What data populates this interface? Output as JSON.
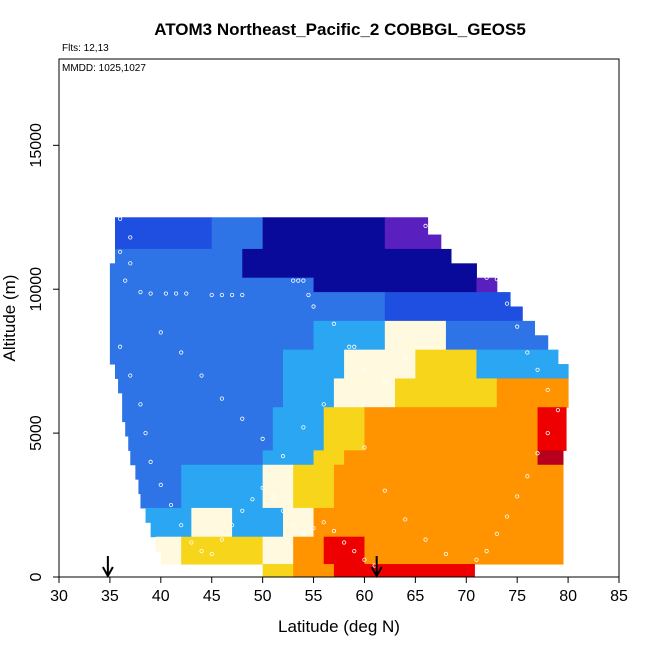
{
  "chart_data": {
    "type": "heatmap",
    "title": "ATOM3 Northeast_Pacific_2 COBBGL_GEOS5",
    "annotations": {
      "flights": "Flts: 12,13",
      "dates": "MMDD: 1025,1027"
    },
    "xlabel": "Latitude (deg N)",
    "ylabel": "Altitude (m)",
    "xlim": [
      30,
      85
    ],
    "ylim": [
      0,
      18000
    ],
    "x_ticks": [
      30,
      35,
      40,
      45,
      50,
      55,
      60,
      65,
      70,
      75,
      80,
      85
    ],
    "x_tick_labels": [
      "30",
      "35",
      "40",
      "45",
      "50",
      "55",
      "60",
      "65",
      "70",
      "75",
      "80",
      "85"
    ],
    "y_ticks": [
      0,
      5000,
      10000,
      15000
    ],
    "y_tick_labels": [
      "0",
      "5000",
      "10000",
      "15000"
    ],
    "grid": false,
    "arrows_latitude": [
      34.8,
      61.2
    ],
    "colors": {
      "dark_purple": "#5a1fbf",
      "dark_blue": "#0a0a9a",
      "blue": "#1f4fe0",
      "mid_blue": "#2e74e6",
      "light_blue": "#2aa6f2",
      "pale": "#fffadf",
      "yellow": "#f7d51a",
      "orange": "#ff9300",
      "red": "#ef0000",
      "dark_red": "#b8001c",
      "track_marker": "#ffffff"
    },
    "bands": [
      {
        "alt_lo": 11900,
        "alt_hi": 12500,
        "lat_lo": 35.5,
        "lat_hi": 66.2
      },
      {
        "alt_lo": 11400,
        "alt_hi": 11900,
        "lat_lo": 35.5,
        "lat_hi": 67.5
      },
      {
        "alt_lo": 10900,
        "alt_hi": 11400,
        "lat_lo": 35.5,
        "lat_hi": 68.5
      },
      {
        "alt_lo": 10400,
        "alt_hi": 10900,
        "lat_lo": 35.0,
        "lat_hi": 71.0
      },
      {
        "alt_lo": 9900,
        "alt_hi": 10400,
        "lat_lo": 35.0,
        "lat_hi": 73.0
      },
      {
        "alt_lo": 9400,
        "alt_hi": 9900,
        "lat_lo": 35.0,
        "lat_hi": 74.3
      },
      {
        "alt_lo": 8900,
        "alt_hi": 9400,
        "lat_lo": 35.0,
        "lat_hi": 75.5
      },
      {
        "alt_lo": 8400,
        "alt_hi": 8900,
        "lat_lo": 35.0,
        "lat_hi": 76.7
      },
      {
        "alt_lo": 7900,
        "alt_hi": 8400,
        "lat_lo": 35.0,
        "lat_hi": 78.0
      },
      {
        "alt_lo": 7400,
        "alt_hi": 7900,
        "lat_lo": 35.0,
        "lat_hi": 79.0
      },
      {
        "alt_lo": 6900,
        "alt_hi": 7400,
        "lat_lo": 35.5,
        "lat_hi": 80.0
      },
      {
        "alt_lo": 6400,
        "alt_hi": 6900,
        "lat_lo": 35.8,
        "lat_hi": 80.0
      },
      {
        "alt_lo": 5900,
        "alt_hi": 6400,
        "lat_lo": 36.2,
        "lat_hi": 80.0
      },
      {
        "alt_lo": 5400,
        "alt_hi": 5900,
        "lat_lo": 36.2,
        "lat_hi": 80.0
      },
      {
        "alt_lo": 4900,
        "alt_hi": 5400,
        "lat_lo": 36.5,
        "lat_hi": 79.8
      },
      {
        "alt_lo": 4400,
        "alt_hi": 4900,
        "lat_lo": 36.8,
        "lat_hi": 79.8
      },
      {
        "alt_lo": 3900,
        "alt_hi": 4400,
        "lat_lo": 37.0,
        "lat_hi": 79.5
      },
      {
        "alt_lo": 3400,
        "alt_hi": 3900,
        "lat_lo": 37.5,
        "lat_hi": 79.5
      },
      {
        "alt_lo": 2900,
        "alt_hi": 3400,
        "lat_lo": 37.8,
        "lat_hi": 79.5
      },
      {
        "alt_lo": 2400,
        "alt_hi": 2900,
        "lat_lo": 38.0,
        "lat_hi": 79.5
      },
      {
        "alt_lo": 1900,
        "alt_hi": 2400,
        "lat_lo": 38.5,
        "lat_hi": 79.5
      },
      {
        "alt_lo": 1400,
        "alt_hi": 1900,
        "lat_lo": 39.0,
        "lat_hi": 79.5
      },
      {
        "alt_lo": 900,
        "alt_hi": 1400,
        "lat_lo": 39.5,
        "lat_hi": 79.5
      },
      {
        "alt_lo": 450,
        "alt_hi": 900,
        "lat_lo": 40.0,
        "lat_hi": 79.5
      },
      {
        "alt_lo": 0,
        "alt_hi": 450,
        "lat_lo": 50.0,
        "lat_hi": 70.8
      }
    ],
    "color_regions": [
      {
        "alt_lo": 11400,
        "alt_hi": 12500,
        "lat_lo": 35.5,
        "lat_hi": 45.0,
        "color": "blue"
      },
      {
        "alt_lo": 11400,
        "alt_hi": 12500,
        "lat_lo": 45.0,
        "lat_hi": 50.0,
        "color": "mid_blue"
      },
      {
        "alt_lo": 11400,
        "alt_hi": 12500,
        "lat_lo": 50.0,
        "lat_hi": 62.0,
        "color": "dark_blue"
      },
      {
        "alt_lo": 11400,
        "alt_hi": 12500,
        "lat_lo": 62.0,
        "lat_hi": 68.0,
        "color": "dark_purple"
      },
      {
        "alt_lo": 10400,
        "alt_hi": 11400,
        "lat_lo": 35.0,
        "lat_hi": 48.0,
        "color": "mid_blue"
      },
      {
        "alt_lo": 10400,
        "alt_hi": 11400,
        "lat_lo": 48.0,
        "lat_hi": 71.0,
        "color": "dark_blue"
      },
      {
        "alt_lo": 9900,
        "alt_hi": 10400,
        "lat_lo": 35.0,
        "lat_hi": 55.0,
        "color": "mid_blue"
      },
      {
        "alt_lo": 9900,
        "alt_hi": 10400,
        "lat_lo": 55.0,
        "lat_hi": 71.0,
        "color": "dark_blue"
      },
      {
        "alt_lo": 9900,
        "alt_hi": 10400,
        "lat_lo": 71.0,
        "lat_hi": 73.0,
        "color": "dark_purple"
      },
      {
        "alt_lo": 8900,
        "alt_hi": 9900,
        "lat_lo": 35.0,
        "lat_hi": 62.0,
        "color": "mid_blue"
      },
      {
        "alt_lo": 8900,
        "alt_hi": 9900,
        "lat_lo": 62.0,
        "lat_hi": 75.5,
        "color": "blue"
      },
      {
        "alt_lo": 7900,
        "alt_hi": 8900,
        "lat_lo": 35.0,
        "lat_hi": 55.0,
        "color": "mid_blue"
      },
      {
        "alt_lo": 7900,
        "alt_hi": 8900,
        "lat_lo": 55.0,
        "lat_hi": 62.0,
        "color": "light_blue"
      },
      {
        "alt_lo": 7900,
        "alt_hi": 8900,
        "lat_lo": 62.0,
        "lat_hi": 68.0,
        "color": "pale"
      },
      {
        "alt_lo": 7900,
        "alt_hi": 8900,
        "lat_lo": 68.0,
        "lat_hi": 78.0,
        "color": "mid_blue"
      },
      {
        "alt_lo": 6900,
        "alt_hi": 7900,
        "lat_lo": 35.0,
        "lat_hi": 52.0,
        "color": "mid_blue"
      },
      {
        "alt_lo": 6900,
        "alt_hi": 7900,
        "lat_lo": 52.0,
        "lat_hi": 58.0,
        "color": "light_blue"
      },
      {
        "alt_lo": 6900,
        "alt_hi": 7900,
        "lat_lo": 58.0,
        "lat_hi": 65.0,
        "color": "pale"
      },
      {
        "alt_lo": 6900,
        "alt_hi": 7900,
        "lat_lo": 65.0,
        "lat_hi": 71.0,
        "color": "yellow"
      },
      {
        "alt_lo": 6900,
        "alt_hi": 7900,
        "lat_lo": 71.0,
        "lat_hi": 80.0,
        "color": "light_blue"
      },
      {
        "alt_lo": 5900,
        "alt_hi": 6900,
        "lat_lo": 35.5,
        "lat_hi": 52.0,
        "color": "mid_blue"
      },
      {
        "alt_lo": 5900,
        "alt_hi": 6900,
        "lat_lo": 52.0,
        "lat_hi": 57.0,
        "color": "light_blue"
      },
      {
        "alt_lo": 5900,
        "alt_hi": 6900,
        "lat_lo": 57.0,
        "lat_hi": 63.0,
        "color": "pale"
      },
      {
        "alt_lo": 5900,
        "alt_hi": 6900,
        "lat_lo": 63.0,
        "lat_hi": 73.0,
        "color": "yellow"
      },
      {
        "alt_lo": 5900,
        "alt_hi": 6900,
        "lat_lo": 73.0,
        "lat_hi": 80.0,
        "color": "orange"
      },
      {
        "alt_lo": 4400,
        "alt_hi": 5900,
        "lat_lo": 36.2,
        "lat_hi": 51.0,
        "color": "mid_blue"
      },
      {
        "alt_lo": 4400,
        "alt_hi": 5900,
        "lat_lo": 51.0,
        "lat_hi": 56.0,
        "color": "light_blue"
      },
      {
        "alt_lo": 4400,
        "alt_hi": 5900,
        "lat_lo": 56.0,
        "lat_hi": 60.0,
        "color": "yellow"
      },
      {
        "alt_lo": 4400,
        "alt_hi": 5900,
        "lat_lo": 60.0,
        "lat_hi": 77.0,
        "color": "orange"
      },
      {
        "alt_lo": 4400,
        "alt_hi": 5900,
        "lat_lo": 77.0,
        "lat_hi": 79.8,
        "color": "red"
      },
      {
        "alt_lo": 3900,
        "alt_hi": 4400,
        "lat_lo": 37.0,
        "lat_hi": 50.0,
        "color": "mid_blue"
      },
      {
        "alt_lo": 3900,
        "alt_hi": 4400,
        "lat_lo": 50.0,
        "lat_hi": 55.0,
        "color": "light_blue"
      },
      {
        "alt_lo": 3900,
        "alt_hi": 4400,
        "lat_lo": 55.0,
        "lat_hi": 58.0,
        "color": "yellow"
      },
      {
        "alt_lo": 3900,
        "alt_hi": 4400,
        "lat_lo": 58.0,
        "lat_hi": 77.0,
        "color": "orange"
      },
      {
        "alt_lo": 3900,
        "alt_hi": 4400,
        "lat_lo": 77.0,
        "lat_hi": 79.5,
        "color": "dark_red"
      },
      {
        "alt_lo": 2400,
        "alt_hi": 3900,
        "lat_lo": 37.5,
        "lat_hi": 42.0,
        "color": "mid_blue"
      },
      {
        "alt_lo": 2400,
        "alt_hi": 3900,
        "lat_lo": 42.0,
        "lat_hi": 50.0,
        "color": "light_blue"
      },
      {
        "alt_lo": 2400,
        "alt_hi": 3900,
        "lat_lo": 50.0,
        "lat_hi": 53.0,
        "color": "pale"
      },
      {
        "alt_lo": 2400,
        "alt_hi": 3900,
        "lat_lo": 53.0,
        "lat_hi": 57.0,
        "color": "yellow"
      },
      {
        "alt_lo": 2400,
        "alt_hi": 3900,
        "lat_lo": 57.0,
        "lat_hi": 79.5,
        "color": "orange"
      },
      {
        "alt_lo": 1400,
        "alt_hi": 2400,
        "lat_lo": 38.5,
        "lat_hi": 43.0,
        "color": "light_blue"
      },
      {
        "alt_lo": 1400,
        "alt_hi": 2400,
        "lat_lo": 43.0,
        "lat_hi": 47.0,
        "color": "pale"
      },
      {
        "alt_lo": 1400,
        "alt_hi": 2400,
        "lat_lo": 47.0,
        "lat_hi": 52.0,
        "color": "light_blue"
      },
      {
        "alt_lo": 1400,
        "alt_hi": 2400,
        "lat_lo": 52.0,
        "lat_hi": 55.0,
        "color": "pale"
      },
      {
        "alt_lo": 1400,
        "alt_hi": 2400,
        "lat_lo": 55.0,
        "lat_hi": 79.5,
        "color": "orange"
      },
      {
        "alt_lo": 450,
        "alt_hi": 1400,
        "lat_lo": 39.5,
        "lat_hi": 42.0,
        "color": "pale"
      },
      {
        "alt_lo": 450,
        "alt_hi": 1400,
        "lat_lo": 42.0,
        "lat_hi": 50.0,
        "color": "yellow"
      },
      {
        "alt_lo": 450,
        "alt_hi": 1400,
        "lat_lo": 50.0,
        "lat_hi": 53.0,
        "color": "pale"
      },
      {
        "alt_lo": 450,
        "alt_hi": 1400,
        "lat_lo": 53.0,
        "lat_hi": 56.0,
        "color": "orange"
      },
      {
        "alt_lo": 450,
        "alt_hi": 1400,
        "lat_lo": 56.0,
        "lat_hi": 60.0,
        "color": "red"
      },
      {
        "alt_lo": 450,
        "alt_hi": 1400,
        "lat_lo": 60.0,
        "lat_hi": 79.5,
        "color": "orange"
      },
      {
        "alt_lo": 0,
        "alt_hi": 450,
        "lat_lo": 50.0,
        "lat_hi": 53.0,
        "color": "yellow"
      },
      {
        "alt_lo": 0,
        "alt_hi": 450,
        "lat_lo": 53.0,
        "lat_hi": 57.0,
        "color": "orange"
      },
      {
        "alt_lo": 0,
        "alt_hi": 450,
        "lat_lo": 57.0,
        "lat_hi": 70.8,
        "color": "red"
      }
    ],
    "flight_track": [
      [
        36,
        12450
      ],
      [
        37,
        11800
      ],
      [
        36,
        11300
      ],
      [
        37,
        10900
      ],
      [
        36.5,
        10300
      ],
      [
        38,
        9900
      ],
      [
        39,
        9850
      ],
      [
        40.5,
        9850
      ],
      [
        41.5,
        9850
      ],
      [
        42.5,
        9850
      ],
      [
        45,
        9800
      ],
      [
        46,
        9800
      ],
      [
        47,
        9800
      ],
      [
        48,
        9800
      ],
      [
        53,
        10300
      ],
      [
        53.5,
        10300
      ],
      [
        54,
        10300
      ],
      [
        54.5,
        9800
      ],
      [
        55,
        9400
      ],
      [
        57,
        8800
      ],
      [
        58.5,
        8000
      ],
      [
        59,
        8000
      ],
      [
        60,
        7200
      ],
      [
        62,
        6800
      ],
      [
        64,
        7600
      ],
      [
        66,
        12200
      ],
      [
        67,
        12150
      ],
      [
        68,
        12100
      ],
      [
        69,
        11800
      ],
      [
        70,
        11300
      ],
      [
        72,
        10400
      ],
      [
        73,
        10350
      ],
      [
        74,
        9500
      ],
      [
        75,
        8700
      ],
      [
        76,
        7800
      ],
      [
        77,
        7200
      ],
      [
        78,
        6500
      ],
      [
        79,
        5800
      ],
      [
        78,
        5000
      ],
      [
        77,
        4300
      ],
      [
        76,
        3500
      ],
      [
        75,
        2800
      ],
      [
        74,
        2100
      ],
      [
        73,
        1500
      ],
      [
        72,
        900
      ],
      [
        71,
        600
      ],
      [
        36,
        8000
      ],
      [
        37,
        7000
      ],
      [
        38,
        6000
      ],
      [
        38.5,
        5000
      ],
      [
        39,
        4000
      ],
      [
        40,
        3200
      ],
      [
        41,
        2500
      ],
      [
        42,
        1800
      ],
      [
        43,
        1200
      ],
      [
        44,
        900
      ],
      [
        45,
        800
      ],
      [
        46,
        1300
      ],
      [
        47,
        1800
      ],
      [
        48,
        2300
      ],
      [
        49,
        2700
      ],
      [
        50,
        3100
      ],
      [
        51,
        2800
      ],
      [
        52,
        2300
      ],
      [
        53,
        1800
      ],
      [
        54,
        1500
      ],
      [
        55,
        1700
      ],
      [
        56,
        1900
      ],
      [
        57,
        1600
      ],
      [
        58,
        1200
      ],
      [
        59,
        900
      ],
      [
        60,
        600
      ],
      [
        61,
        400
      ],
      [
        40,
        8500
      ],
      [
        42,
        7800
      ],
      [
        44,
        7000
      ],
      [
        46,
        6200
      ],
      [
        48,
        5500
      ],
      [
        50,
        4800
      ],
      [
        52,
        4200
      ],
      [
        54,
        5200
      ],
      [
        56,
        6000
      ],
      [
        60,
        4500
      ],
      [
        62,
        3000
      ],
      [
        64,
        2000
      ],
      [
        66,
        1300
      ],
      [
        68,
        800
      ]
    ]
  }
}
